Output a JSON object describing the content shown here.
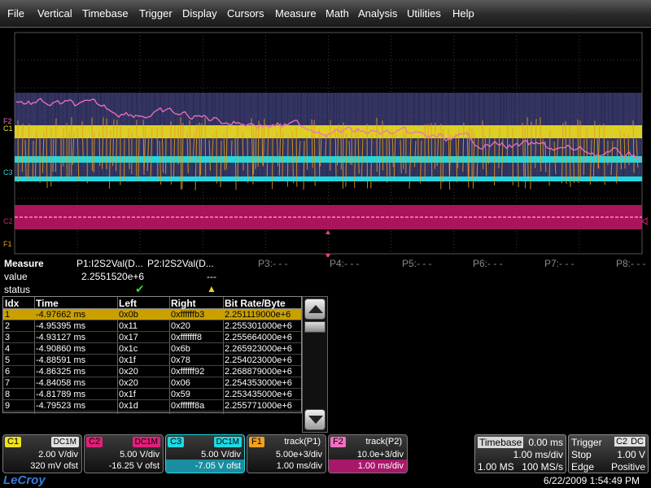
{
  "menu": [
    "File",
    "Vertical",
    "Timebase",
    "Trigger",
    "Display",
    "Cursors",
    "Measure",
    "Math",
    "Analysis",
    "Utilities",
    "Help"
  ],
  "markers": {
    "f2": "F2",
    "c1": "C1",
    "c3": "C3",
    "c2": "C2",
    "f1": "F1"
  },
  "colors": {
    "c1": "#f0e020",
    "c2": "#e0207a",
    "c3": "#20d8e0",
    "f1": "#f0a020",
    "f2": "#f070c0",
    "trace_bg": "#5a5a9a"
  },
  "measure": {
    "title": "Measure",
    "value_label": "value",
    "status_label": "status",
    "params": [
      {
        "name": "P1:I2S2Val(D...",
        "value": "2.2551520e+6",
        "status": "check-icon"
      },
      {
        "name": "P2:I2S2Val(D...",
        "value": "---",
        "status": "warning-icon"
      },
      {
        "name": "P3:- - -"
      },
      {
        "name": "P4:- - -"
      },
      {
        "name": "P5:- - -"
      },
      {
        "name": "P6:- - -"
      },
      {
        "name": "P7:- - -"
      },
      {
        "name": "P8:- - -"
      }
    ]
  },
  "table": {
    "headers": [
      "Idx",
      "Time",
      "Left",
      "Right",
      "Bit Rate/Byte"
    ],
    "rows": [
      [
        "1",
        "-4.97662 ms",
        "0x0b",
        "0xffffffb3",
        "2.251119000e+6"
      ],
      [
        "2",
        "-4.95395 ms",
        "0x11",
        "0x20",
        "2.255301000e+6"
      ],
      [
        "3",
        "-4.93127 ms",
        "0x17",
        "0xfffffff8",
        "2.255664000e+6"
      ],
      [
        "4",
        "-4.90860 ms",
        "0x1c",
        "0x6b",
        "2.265923000e+6"
      ],
      [
        "5",
        "-4.88591 ms",
        "0x1f",
        "0x78",
        "2.254023000e+6"
      ],
      [
        "6",
        "-4.86325 ms",
        "0x20",
        "0xffffff92",
        "2.268879000e+6"
      ],
      [
        "7",
        "-4.84058 ms",
        "0x20",
        "0x06",
        "2.254353000e+6"
      ],
      [
        "8",
        "-4.81789 ms",
        "0x1f",
        "0x59",
        "2.253435000e+6"
      ],
      [
        "9",
        "-4.79523 ms",
        "0x1d",
        "0xffffff8a",
        "2.255771000e+6"
      ]
    ],
    "selected_row": 1
  },
  "descriptors": [
    {
      "tag": "C1",
      "coupling": "DC1M",
      "line2": "2.00 V/div",
      "line3": "320 mV ofst"
    },
    {
      "tag": "C2",
      "coupling": "DC1M",
      "line2": "5.00 V/div",
      "line3": "-16.25 V ofst"
    },
    {
      "tag": "C3",
      "coupling": "DC1M",
      "line2": "5.00 V/div",
      "line3": "-7.05 V ofst"
    },
    {
      "tag": "F1",
      "func": "track(P1)",
      "line2": "5.00e+3/div",
      "line3": "1.00 ms/div"
    },
    {
      "tag": "F2",
      "func": "track(P2)",
      "line2": "10.0e+3/div",
      "line3": "1.00 ms/div"
    }
  ],
  "timebase": {
    "label": "Timebase",
    "delay": "0.00 ms",
    "tdiv": "1.00 ms/div",
    "samples": "1.00 MS",
    "rate": "100 MS/s"
  },
  "trigger": {
    "label": "Trigger",
    "source": "C2",
    "coupling": "DC",
    "mode": "Stop",
    "level": "1.00 V",
    "type": "Edge",
    "slope": "Positive"
  },
  "logo": "LeCroy",
  "datetime": "6/22/2009 1:54:49 PM"
}
